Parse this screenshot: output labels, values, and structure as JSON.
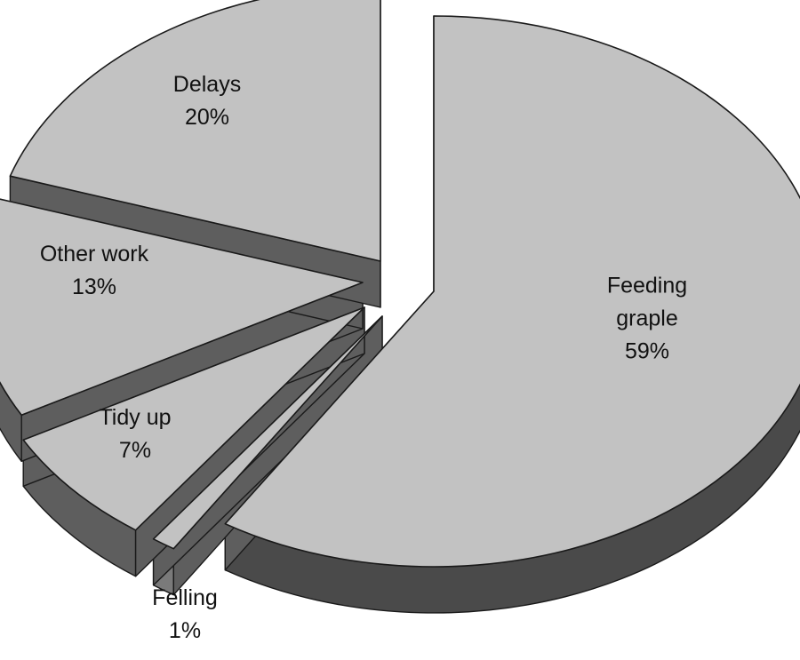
{
  "chart_data": {
    "type": "pie",
    "style": "3d-exploded",
    "title": "",
    "slices": [
      {
        "name": "Feeding graple",
        "label_lines": [
          "Feeding",
          "graple"
        ],
        "percent_label": "59%",
        "value": 59
      },
      {
        "name": "Felling",
        "label_lines": [
          "Felling"
        ],
        "percent_label": "1%",
        "value": 1
      },
      {
        "name": "Tidy up",
        "label_lines": [
          "Tidy up"
        ],
        "percent_label": "7%",
        "value": 7
      },
      {
        "name": "Other work",
        "label_lines": [
          "Other work"
        ],
        "percent_label": "13%",
        "value": 13
      },
      {
        "name": "Delays",
        "label_lines": [
          "Delays"
        ],
        "percent_label": "20%",
        "value": 20
      }
    ],
    "colors": {
      "top": "#c2c2c2",
      "side": "#5e5e5e",
      "side_right": "#4a4a4a",
      "small_side": "#7a7a7a",
      "edge": "#1a1a1a"
    },
    "legend": "none"
  }
}
